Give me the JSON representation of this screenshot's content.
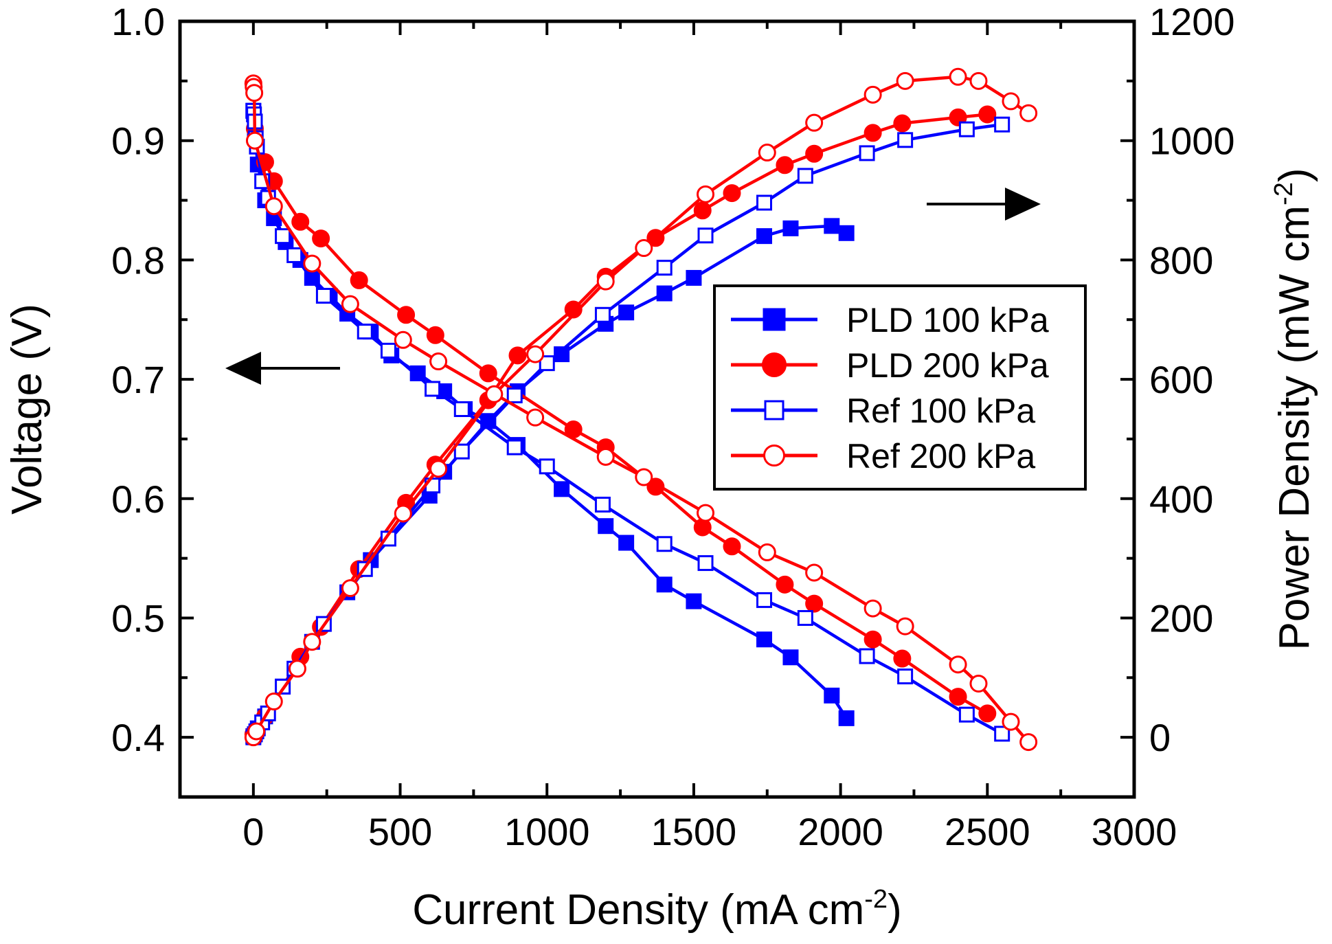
{
  "chart_data": {
    "type": "line",
    "xlabel": "Current Density (mA cm",
    "xlabel_sup": "-2",
    "xlabel_end": ")",
    "ylabel_left": "Voltage (V)",
    "ylabel_right": "Power Density (mW cm",
    "ylabel_right_sup": "-2",
    "ylabel_right_end": ")",
    "xlim": [
      -250,
      3000
    ],
    "ylim_left": [
      0.35,
      1.0
    ],
    "ylim_right": [
      -100,
      1200
    ],
    "x_ticks": [
      0,
      500,
      1000,
      1500,
      2000,
      2500,
      3000
    ],
    "y_left_ticks": [
      0.4,
      0.5,
      0.6,
      0.7,
      0.8,
      0.9,
      1.0
    ],
    "y_left_tick_labels": [
      "0.4",
      "0.5",
      "0.6",
      "0.7",
      "0.8",
      "0.9",
      "1.0"
    ],
    "y_right_ticks": [
      0,
      200,
      400,
      600,
      800,
      1000,
      1200
    ],
    "legend_position": "center-right",
    "arrows": [
      {
        "direction": "left",
        "meaning": "voltage curves use left axis"
      },
      {
        "direction": "right",
        "meaning": "power curves use right axis"
      }
    ],
    "series": [
      {
        "name": "PLD 100 kPa",
        "color": "#0000ff",
        "marker": "square",
        "filled": true,
        "voltage": {
          "x": [
            0,
            5,
            15,
            40,
            70,
            110,
            160,
            200,
            260,
            320,
            400,
            470,
            560,
            650,
            720,
            800,
            900,
            1050,
            1200,
            1270,
            1400,
            1500,
            1740,
            1830,
            1970,
            2020
          ],
          "y": [
            0.925,
            0.905,
            0.88,
            0.85,
            0.835,
            0.815,
            0.8,
            0.785,
            0.77,
            0.755,
            0.74,
            0.72,
            0.705,
            0.69,
            0.675,
            0.665,
            0.645,
            0.608,
            0.577,
            0.563,
            0.528,
            0.514,
            0.482,
            0.467,
            0.435,
            0.416
          ]
        },
        "power": {
          "x": [
            0,
            5,
            15,
            40,
            100,
            200,
            320,
            400,
            600,
            650,
            800,
            900,
            1050,
            1200,
            1270,
            1400,
            1500,
            1740,
            1830,
            1970,
            2020
          ],
          "y": [
            2,
            5,
            15,
            35,
            85,
            160,
            243,
            297,
            405,
            445,
            530,
            580,
            642,
            693,
            712,
            744,
            770,
            840,
            853,
            857,
            845
          ]
        }
      },
      {
        "name": "PLD 200 kPa",
        "color": "#ff0000",
        "marker": "circle",
        "filled": true,
        "voltage": {
          "x": [
            5,
            40,
            70,
            160,
            230,
            360,
            520,
            620,
            800,
            1090,
            1200,
            1370,
            1530,
            1630,
            1810,
            1910,
            2110,
            2210,
            2400,
            2500
          ],
          "y": [
            0.91,
            0.882,
            0.866,
            0.832,
            0.818,
            0.783,
            0.754,
            0.737,
            0.705,
            0.658,
            0.643,
            0.61,
            0.576,
            0.56,
            0.528,
            0.512,
            0.482,
            0.466,
            0.434,
            0.42
          ]
        },
        "power": {
          "x": [
            0,
            40,
            160,
            230,
            360,
            520,
            620,
            800,
            900,
            1090,
            1200,
            1370,
            1530,
            1630,
            1810,
            1910,
            2110,
            2210,
            2400,
            2500
          ],
          "y": [
            5,
            35,
            135,
            185,
            282,
            393,
            457,
            565,
            640,
            717,
            772,
            837,
            883,
            912,
            959,
            978,
            1013,
            1029,
            1039,
            1044
          ]
        }
      },
      {
        "name": "Ref 100 kPa",
        "color": "#0000ff",
        "marker": "square",
        "filled": false,
        "voltage": {
          "x": [
            0,
            2,
            5,
            8,
            12,
            30,
            50,
            100,
            140,
            240,
            380,
            460,
            610,
            710,
            890,
            1000,
            1190,
            1400,
            1540,
            1740,
            1880,
            2090,
            2220,
            2430,
            2550
          ],
          "y": [
            0.925,
            0.922,
            0.916,
            0.902,
            0.895,
            0.866,
            0.852,
            0.82,
            0.804,
            0.77,
            0.74,
            0.724,
            0.692,
            0.675,
            0.643,
            0.627,
            0.595,
            0.562,
            0.546,
            0.515,
            0.5,
            0.468,
            0.451,
            0.419,
            0.403
          ]
        },
        "power": {
          "x": [
            0,
            5,
            10,
            30,
            50,
            100,
            140,
            240,
            380,
            460,
            610,
            710,
            890,
            1000,
            1190,
            1400,
            1540,
            1740,
            1880,
            2090,
            2220,
            2430,
            2550
          ],
          "y": [
            0,
            5,
            10,
            25,
            40,
            85,
            115,
            190,
            282,
            333,
            422,
            479,
            573,
            627,
            708,
            787,
            841,
            896,
            941,
            979,
            1001,
            1019,
            1027
          ]
        }
      },
      {
        "name": "Ref 200 kPa",
        "color": "#ff0000",
        "marker": "circle",
        "filled": false,
        "voltage": {
          "x": [
            0,
            1,
            3,
            5,
            70,
            200,
            330,
            510,
            630,
            960,
            1200,
            1330,
            1540,
            1750,
            1910,
            2110,
            2220,
            2400,
            2470,
            2580,
            2640
          ],
          "y": [
            0.948,
            0.945,
            0.94,
            0.9,
            0.845,
            0.797,
            0.763,
            0.733,
            0.715,
            0.668,
            0.635,
            0.618,
            0.588,
            0.555,
            0.538,
            0.508,
            0.493,
            0.461,
            0.445,
            0.413,
            0.396
          ]
        },
        "power": {
          "x": [
            0,
            10,
            70,
            150,
            200,
            330,
            510,
            630,
            820,
            960,
            1200,
            1330,
            1540,
            1750,
            1910,
            2110,
            2220,
            2400,
            2470,
            2580,
            2640
          ],
          "y": [
            0,
            10,
            60,
            115,
            160,
            250,
            375,
            450,
            575,
            642,
            764,
            820,
            910,
            980,
            1030,
            1077,
            1100,
            1107,
            1100,
            1066,
            1046
          ]
        }
      }
    ]
  }
}
